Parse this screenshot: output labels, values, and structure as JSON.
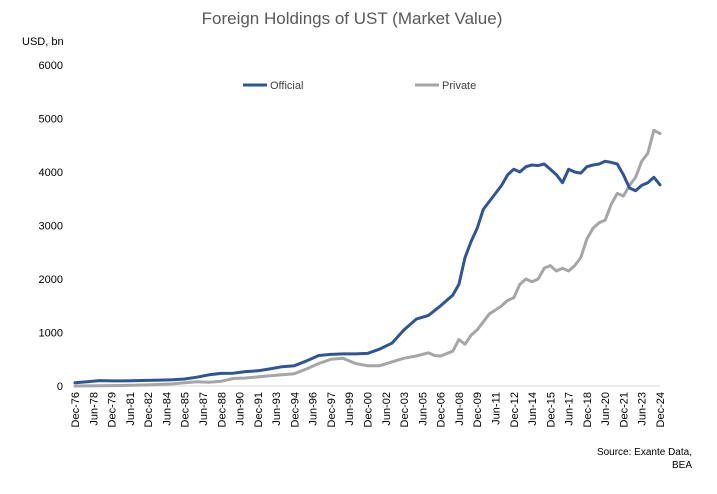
{
  "chart_data": {
    "type": "line",
    "title": "Foreign Holdings of UST (Market Value)",
    "ylabel": "USD, bn",
    "xlabel": "",
    "ylim": [
      0,
      6000
    ],
    "yticks": [
      0,
      1000,
      2000,
      3000,
      4000,
      5000,
      6000
    ],
    "x_start": "Dec-76",
    "x_end": "Dec-24",
    "xtick_labels": [
      "Dec-76",
      "Jun-78",
      "Dec-79",
      "Jun-81",
      "Dec-82",
      "Jun-84",
      "Dec-85",
      "Jun-87",
      "Dec-88",
      "Jun-90",
      "Dec-91",
      "Jun-93",
      "Dec-94",
      "Jun-96",
      "Dec-97",
      "Jun-99",
      "Dec-00",
      "Jun-02",
      "Dec-03",
      "Jun-05",
      "Dec-06",
      "Jun-08",
      "Dec-09",
      "Jun-11",
      "Dec-12",
      "Jun-14",
      "Dec-15",
      "Jun-17",
      "Dec-18",
      "Jun-20",
      "Dec-21",
      "Jun-23",
      "Dec-24"
    ],
    "grid": false,
    "legend_position": "top",
    "series": [
      {
        "name": "Official",
        "color": "#2f5597",
        "points": [
          [
            "Dec-76",
            60
          ],
          [
            "Dec-77",
            80
          ],
          [
            "Dec-78",
            100
          ],
          [
            "Dec-79",
            95
          ],
          [
            "Dec-80",
            95
          ],
          [
            "Dec-81",
            100
          ],
          [
            "Dec-82",
            105
          ],
          [
            "Dec-83",
            110
          ],
          [
            "Dec-84",
            115
          ],
          [
            "Dec-85",
            130
          ],
          [
            "Dec-86",
            165
          ],
          [
            "Dec-87",
            210
          ],
          [
            "Dec-88",
            235
          ],
          [
            "Dec-89",
            240
          ],
          [
            "Dec-90",
            270
          ],
          [
            "Dec-91",
            285
          ],
          [
            "Dec-92",
            320
          ],
          [
            "Dec-93",
            360
          ],
          [
            "Dec-94",
            380
          ],
          [
            "Dec-95",
            470
          ],
          [
            "Dec-96",
            570
          ],
          [
            "Dec-97",
            590
          ],
          [
            "Dec-98",
            600
          ],
          [
            "Dec-99",
            600
          ],
          [
            "Dec-00",
            610
          ],
          [
            "Dec-01",
            690
          ],
          [
            "Dec-02",
            800
          ],
          [
            "Dec-03",
            1050
          ],
          [
            "Dec-04",
            1250
          ],
          [
            "Dec-05",
            1320
          ],
          [
            "Dec-06",
            1500
          ],
          [
            "Dec-07",
            1700
          ],
          [
            "Jun-08",
            1900
          ],
          [
            "Dec-08",
            2400
          ],
          [
            "Jun-09",
            2700
          ],
          [
            "Dec-09",
            2950
          ],
          [
            "Jun-10",
            3300
          ],
          [
            "Dec-10",
            3450
          ],
          [
            "Jun-11",
            3600
          ],
          [
            "Dec-11",
            3750
          ],
          [
            "Jun-12",
            3950
          ],
          [
            "Dec-12",
            4050
          ],
          [
            "Jun-13",
            4000
          ],
          [
            "Dec-13",
            4100
          ],
          [
            "Jun-14",
            4130
          ],
          [
            "Dec-14",
            4120
          ],
          [
            "Jun-15",
            4150
          ],
          [
            "Dec-15",
            4050
          ],
          [
            "Jun-16",
            3950
          ],
          [
            "Dec-16",
            3800
          ],
          [
            "Jun-17",
            4050
          ],
          [
            "Dec-17",
            4000
          ],
          [
            "Jun-18",
            3980
          ],
          [
            "Dec-18",
            4100
          ],
          [
            "Jun-19",
            4130
          ],
          [
            "Dec-19",
            4150
          ],
          [
            "Jun-20",
            4200
          ],
          [
            "Dec-20",
            4180
          ],
          [
            "Jun-21",
            4150
          ],
          [
            "Dec-21",
            3950
          ],
          [
            "Jun-22",
            3700
          ],
          [
            "Dec-22",
            3650
          ],
          [
            "Jun-23",
            3750
          ],
          [
            "Dec-23",
            3800
          ],
          [
            "Jun-24",
            3900
          ],
          [
            "Dec-24",
            3760
          ]
        ]
      },
      {
        "name": "Private",
        "color": "#a6a6a6",
        "points": [
          [
            "Dec-76",
            0
          ],
          [
            "Dec-78",
            5
          ],
          [
            "Dec-80",
            10
          ],
          [
            "Dec-82",
            20
          ],
          [
            "Dec-84",
            40
          ],
          [
            "Dec-85",
            60
          ],
          [
            "Dec-86",
            80
          ],
          [
            "Dec-87",
            70
          ],
          [
            "Dec-88",
            90
          ],
          [
            "Dec-89",
            140
          ],
          [
            "Dec-90",
            150
          ],
          [
            "Dec-91",
            170
          ],
          [
            "Dec-92",
            190
          ],
          [
            "Dec-93",
            210
          ],
          [
            "Dec-94",
            230
          ],
          [
            "Dec-95",
            320
          ],
          [
            "Dec-96",
            420
          ],
          [
            "Dec-97",
            500
          ],
          [
            "Dec-98",
            520
          ],
          [
            "Jun-99",
            470
          ],
          [
            "Dec-99",
            420
          ],
          [
            "Dec-00",
            380
          ],
          [
            "Dec-01",
            380
          ],
          [
            "Dec-02",
            450
          ],
          [
            "Dec-03",
            520
          ],
          [
            "Dec-04",
            560
          ],
          [
            "Dec-05",
            620
          ],
          [
            "Jun-06",
            570
          ],
          [
            "Dec-06",
            560
          ],
          [
            "Dec-07",
            650
          ],
          [
            "Jun-08",
            870
          ],
          [
            "Dec-08",
            780
          ],
          [
            "Jun-09",
            950
          ],
          [
            "Dec-09",
            1050
          ],
          [
            "Jun-10",
            1200
          ],
          [
            "Dec-10",
            1350
          ],
          [
            "Jun-11",
            1420
          ],
          [
            "Dec-11",
            1500
          ],
          [
            "Jun-12",
            1600
          ],
          [
            "Dec-12",
            1650
          ],
          [
            "Jun-13",
            1900
          ],
          [
            "Dec-13",
            2000
          ],
          [
            "Jun-14",
            1950
          ],
          [
            "Dec-14",
            2000
          ],
          [
            "Jun-15",
            2200
          ],
          [
            "Dec-15",
            2250
          ],
          [
            "Jun-16",
            2150
          ],
          [
            "Dec-16",
            2200
          ],
          [
            "Jun-17",
            2150
          ],
          [
            "Dec-17",
            2250
          ],
          [
            "Jun-18",
            2400
          ],
          [
            "Dec-18",
            2750
          ],
          [
            "Jun-19",
            2950
          ],
          [
            "Dec-19",
            3050
          ],
          [
            "Jun-20",
            3100
          ],
          [
            "Dec-20",
            3400
          ],
          [
            "Jun-21",
            3600
          ],
          [
            "Dec-21",
            3550
          ],
          [
            "Jun-22",
            3750
          ],
          [
            "Dec-22",
            3900
          ],
          [
            "Jun-23",
            4200
          ],
          [
            "Dec-23",
            4350
          ],
          [
            "Jun-24",
            4780
          ],
          [
            "Dec-24",
            4720
          ]
        ]
      }
    ]
  },
  "source_line1": "Source: Exante Data,",
  "source_line2": "BEA"
}
